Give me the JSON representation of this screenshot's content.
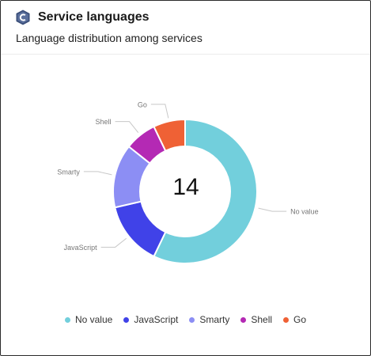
{
  "header": {
    "title": "Service languages",
    "subtitle": "Language distribution among services",
    "logo_icon": "csharp-hexagon-icon"
  },
  "chart_data": {
    "type": "pie",
    "style": "donut",
    "title": "Service languages",
    "subtitle": "Language distribution among services",
    "center_label": "14",
    "total": 14,
    "slices": [
      {
        "name": "No value",
        "value": 8,
        "color": "#72cfdc"
      },
      {
        "name": "JavaScript",
        "value": 2,
        "color": "#4042e8"
      },
      {
        "name": "Smarty",
        "value": 2,
        "color": "#8c8ef4"
      },
      {
        "name": "Shell",
        "value": 1,
        "color": "#b429b4"
      },
      {
        "name": "Go",
        "value": 1,
        "color": "#ef6135"
      }
    ],
    "legend_position": "bottom"
  }
}
